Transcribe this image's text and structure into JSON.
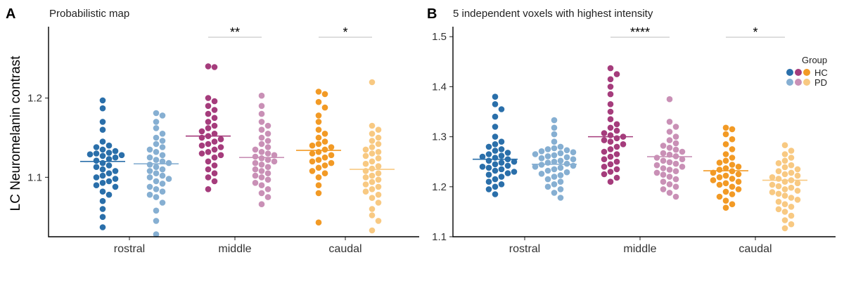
{
  "ylabel": "LC Neuromelanin contrast",
  "colors": {
    "HC": {
      "rostral": "#2a6faa",
      "middle": "#a53c7c",
      "caudal": "#f29a25"
    },
    "PD": {
      "rostral": "#86afd2",
      "middle": "#c990b6",
      "caudal": "#f8c982"
    }
  },
  "legend": {
    "title": "Group",
    "entries": [
      "HC",
      "PD"
    ]
  },
  "chart_data": [
    {
      "type": "scatter",
      "panel": "A",
      "title": "Probabilistic map",
      "categories": [
        "rostral",
        "middle",
        "caudal"
      ],
      "groups": [
        "HC",
        "PD"
      ],
      "ylim": [
        1.025,
        1.29
      ],
      "yticks": [
        1.1,
        1.2
      ],
      "ytick_labels": [
        "1.1",
        "1.2"
      ],
      "series": [
        {
          "name": "HC",
          "region": "rostral",
          "median": 1.12,
          "values": [
            1.197,
            1.187,
            1.17,
            1.16,
            1.145,
            1.14,
            1.138,
            1.135,
            1.133,
            1.131,
            1.13,
            1.129,
            1.128,
            1.127,
            1.125,
            1.123,
            1.121,
            1.118,
            1.115,
            1.113,
            1.11,
            1.108,
            1.105,
            1.102,
            1.1,
            1.098,
            1.095,
            1.093,
            1.09,
            1.088,
            1.082,
            1.078,
            1.07,
            1.06,
            1.05,
            1.037
          ]
        },
        {
          "name": "PD",
          "region": "rostral",
          "median": 1.117,
          "values": [
            1.181,
            1.178,
            1.17,
            1.162,
            1.155,
            1.15,
            1.146,
            1.142,
            1.138,
            1.135,
            1.132,
            1.128,
            1.125,
            1.122,
            1.12,
            1.118,
            1.116,
            1.113,
            1.11,
            1.108,
            1.105,
            1.102,
            1.1,
            1.098,
            1.095,
            1.092,
            1.088,
            1.085,
            1.082,
            1.078,
            1.075,
            1.068,
            1.058,
            1.045,
            1.028
          ]
        },
        {
          "name": "HC",
          "region": "middle",
          "median": 1.152,
          "values": [
            1.24,
            1.239,
            1.2,
            1.196,
            1.19,
            1.185,
            1.18,
            1.175,
            1.17,
            1.165,
            1.162,
            1.158,
            1.155,
            1.152,
            1.15,
            1.148,
            1.145,
            1.142,
            1.14,
            1.138,
            1.135,
            1.132,
            1.13,
            1.128,
            1.125,
            1.12,
            1.115,
            1.11,
            1.105,
            1.1,
            1.095,
            1.085
          ]
        },
        {
          "name": "PD",
          "region": "middle",
          "median": 1.125,
          "values": [
            1.203,
            1.19,
            1.18,
            1.17,
            1.165,
            1.16,
            1.155,
            1.15,
            1.146,
            1.142,
            1.138,
            1.135,
            1.132,
            1.13,
            1.128,
            1.126,
            1.124,
            1.122,
            1.12,
            1.118,
            1.116,
            1.113,
            1.11,
            1.108,
            1.105,
            1.102,
            1.1,
            1.097,
            1.093,
            1.09,
            1.085,
            1.08,
            1.075,
            1.066
          ]
        },
        {
          "name": "HC",
          "region": "caudal",
          "median": 1.134,
          "values": [
            1.208,
            1.205,
            1.195,
            1.188,
            1.178,
            1.17,
            1.16,
            1.155,
            1.15,
            1.145,
            1.142,
            1.14,
            1.138,
            1.135,
            1.132,
            1.13,
            1.128,
            1.125,
            1.122,
            1.12,
            1.118,
            1.115,
            1.112,
            1.108,
            1.105,
            1.1,
            1.09,
            1.08,
            1.043
          ]
        },
        {
          "name": "PD",
          "region": "caudal",
          "median": 1.11,
          "values": [
            1.22,
            1.165,
            1.16,
            1.155,
            1.15,
            1.146,
            1.142,
            1.138,
            1.135,
            1.132,
            1.13,
            1.127,
            1.124,
            1.12,
            1.117,
            1.114,
            1.111,
            1.108,
            1.105,
            1.102,
            1.1,
            1.097,
            1.094,
            1.091,
            1.088,
            1.085,
            1.082,
            1.078,
            1.074,
            1.068,
            1.06,
            1.052,
            1.045,
            1.033
          ]
        }
      ],
      "significance": [
        {
          "region": "middle",
          "label": "**"
        },
        {
          "region": "caudal",
          "label": "*"
        }
      ]
    },
    {
      "type": "scatter",
      "panel": "B",
      "title": "5 independent voxels with highest intensity",
      "categories": [
        "rostral",
        "middle",
        "caudal"
      ],
      "groups": [
        "HC",
        "PD"
      ],
      "ylim": [
        1.1,
        1.52
      ],
      "yticks": [
        1.1,
        1.2,
        1.3,
        1.4,
        1.5
      ],
      "ytick_labels": [
        "1.1",
        "1.2",
        "1.3",
        "1.4",
        "1.5"
      ],
      "series": [
        {
          "name": "HC",
          "region": "rostral",
          "median": 1.255,
          "values": [
            1.38,
            1.365,
            1.355,
            1.34,
            1.32,
            1.3,
            1.29,
            1.285,
            1.28,
            1.275,
            1.272,
            1.268,
            1.265,
            1.262,
            1.26,
            1.258,
            1.255,
            1.252,
            1.25,
            1.248,
            1.245,
            1.242,
            1.24,
            1.238,
            1.235,
            1.232,
            1.23,
            1.227,
            1.224,
            1.22,
            1.215,
            1.21,
            1.205,
            1.2,
            1.195,
            1.185
          ]
        },
        {
          "name": "PD",
          "region": "rostral",
          "median": 1.245,
          "values": [
            1.333,
            1.318,
            1.305,
            1.29,
            1.28,
            1.277,
            1.275,
            1.273,
            1.271,
            1.269,
            1.267,
            1.265,
            1.263,
            1.261,
            1.259,
            1.257,
            1.255,
            1.252,
            1.25,
            1.248,
            1.246,
            1.244,
            1.242,
            1.24,
            1.238,
            1.235,
            1.232,
            1.229,
            1.226,
            1.223,
            1.22,
            1.215,
            1.21,
            1.205,
            1.2,
            1.195,
            1.188,
            1.178
          ]
        },
        {
          "name": "HC",
          "region": "middle",
          "median": 1.3,
          "values": [
            1.437,
            1.425,
            1.415,
            1.4,
            1.385,
            1.365,
            1.35,
            1.335,
            1.325,
            1.318,
            1.312,
            1.307,
            1.303,
            1.3,
            1.297,
            1.293,
            1.29,
            1.285,
            1.28,
            1.275,
            1.27,
            1.265,
            1.26,
            1.255,
            1.25,
            1.245,
            1.24,
            1.235,
            1.23,
            1.225,
            1.218,
            1.21
          ]
        },
        {
          "name": "PD",
          "region": "middle",
          "median": 1.26,
          "values": [
            1.375,
            1.33,
            1.32,
            1.31,
            1.3,
            1.293,
            1.287,
            1.282,
            1.278,
            1.274,
            1.27,
            1.267,
            1.264,
            1.261,
            1.258,
            1.255,
            1.252,
            1.249,
            1.246,
            1.243,
            1.24,
            1.237,
            1.234,
            1.231,
            1.228,
            1.224,
            1.22,
            1.215,
            1.21,
            1.205,
            1.2,
            1.195,
            1.188,
            1.18
          ]
        },
        {
          "name": "HC",
          "region": "caudal",
          "median": 1.232,
          "values": [
            1.318,
            1.315,
            1.305,
            1.295,
            1.285,
            1.275,
            1.265,
            1.258,
            1.252,
            1.248,
            1.244,
            1.24,
            1.237,
            1.234,
            1.231,
            1.228,
            1.225,
            1.222,
            1.219,
            1.216,
            1.213,
            1.21,
            1.207,
            1.204,
            1.2,
            1.195,
            1.19,
            1.185,
            1.18,
            1.172,
            1.165,
            1.158
          ]
        },
        {
          "name": "PD",
          "region": "caudal",
          "median": 1.213,
          "values": [
            1.283,
            1.272,
            1.265,
            1.258,
            1.252,
            1.247,
            1.243,
            1.239,
            1.235,
            1.231,
            1.228,
            1.225,
            1.222,
            1.219,
            1.216,
            1.213,
            1.21,
            1.207,
            1.204,
            1.201,
            1.198,
            1.195,
            1.192,
            1.189,
            1.186,
            1.182,
            1.178,
            1.174,
            1.17,
            1.165,
            1.16,
            1.155,
            1.15,
            1.142,
            1.133,
            1.125,
            1.117
          ]
        }
      ],
      "significance": [
        {
          "region": "middle",
          "label": "****"
        },
        {
          "region": "caudal",
          "label": "*"
        }
      ]
    }
  ]
}
